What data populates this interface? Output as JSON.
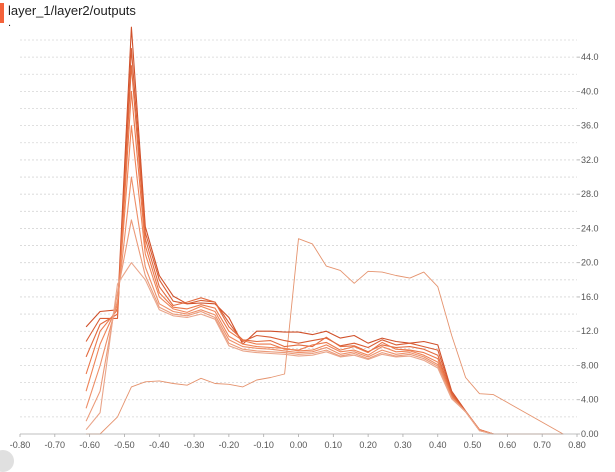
{
  "header": {
    "title": "layer_1/layer2/outputs",
    "subtitle": "."
  },
  "colors": {
    "accent": "#f4623a",
    "old": "#e9a58a",
    "mid": "#f07f50",
    "new": "#d0502a",
    "outlier": "#e5936e"
  },
  "chart_data": {
    "type": "line",
    "title": "layer_1/layer2/outputs",
    "xlabel": "",
    "ylabel": "",
    "xlim": [
      -0.8,
      0.8
    ],
    "ylim": [
      0,
      46
    ],
    "grid": true,
    "y_axis_side": "right",
    "x_ticks": [
      "-0.80",
      "-0.70",
      "-0.60",
      "-0.50",
      "-0.40",
      "-0.30",
      "-0.20",
      "-0.10",
      "0.00",
      "0.10",
      "0.20",
      "0.30",
      "0.40",
      "0.50",
      "0.60",
      "0.70",
      "0.80"
    ],
    "x_tick_values": [
      -0.8,
      -0.7,
      -0.6,
      -0.5,
      -0.4,
      -0.3,
      -0.2,
      -0.1,
      0.0,
      0.1,
      0.2,
      0.3,
      0.4,
      0.5,
      0.6,
      0.7,
      0.8
    ],
    "y_ticks": [
      "0.00",
      "4.00",
      "8.00",
      "12.0",
      "16.0",
      "20.0",
      "24.0",
      "28.0",
      "32.0",
      "36.0",
      "40.0",
      "44.0"
    ],
    "y_tick_values": [
      0,
      4,
      8,
      12,
      16,
      20,
      24,
      28,
      32,
      36,
      40,
      44
    ],
    "series": [
      {
        "x": [
          -0.61,
          -0.57,
          -0.52,
          -0.48,
          -0.44,
          -0.4,
          -0.36,
          -0.32,
          -0.28,
          -0.24,
          -0.2,
          -0.16,
          -0.12,
          -0.08,
          -0.04,
          0.0,
          0.04,
          0.08,
          0.12,
          0.16,
          0.2,
          0.24,
          0.28,
          0.32,
          0.36,
          0.4,
          0.44,
          0.48,
          0.52,
          0.56,
          0.76
        ],
        "y": [
          0,
          0,
          2,
          5.5,
          6.1,
          6.2,
          5.9,
          5.7,
          6.5,
          5.9,
          5.8,
          5.5,
          6.3,
          6.6,
          7,
          22.8,
          22.2,
          19.6,
          19.1,
          17.6,
          19,
          18.9,
          18.5,
          18.2,
          18.9,
          17.2,
          11.5,
          6.6,
          4.7,
          4.6,
          0
        ]
      },
      {
        "x": [
          -0.61,
          -0.57,
          -0.52,
          -0.48,
          -0.44,
          -0.4,
          -0.36,
          -0.32,
          -0.28,
          -0.24,
          -0.2,
          -0.16,
          -0.12,
          -0.08,
          -0.04,
          0.0,
          0.04,
          0.08,
          0.12,
          0.16,
          0.2,
          0.24,
          0.28,
          0.32,
          0.36,
          0.4,
          0.44,
          0.48,
          0.52,
          0.56,
          0.6,
          0.64,
          0.68,
          0.72,
          0.76
        ],
        "y": [
          12.5,
          14.3,
          14.5,
          47.5,
          24.2,
          18.5,
          16.1,
          15.2,
          15.3,
          15.2,
          13.6,
          10.5,
          12,
          12,
          11.9,
          11.9,
          11.6,
          12.0,
          11.2,
          11.5,
          10.6,
          11.2,
          10.8,
          10.6,
          10.8,
          10.4,
          5,
          2.7,
          0.5,
          0,
          0,
          0,
          0,
          0,
          0
        ]
      },
      {
        "x": [
          -0.61,
          -0.57,
          -0.52,
          -0.48,
          -0.44,
          -0.4,
          -0.36,
          -0.32,
          -0.28,
          -0.24,
          -0.2,
          -0.16,
          -0.12,
          -0.08,
          -0.04,
          0.0,
          0.04,
          0.08,
          0.12,
          0.16,
          0.2,
          0.24,
          0.28,
          0.32,
          0.36,
          0.4,
          0.44,
          0.48,
          0.52,
          0.56,
          0.6,
          0.64,
          0.68,
          0.72,
          0.76
        ],
        "y": [
          10.8,
          13.5,
          13.5,
          45,
          23.5,
          18,
          15.5,
          15.2,
          15.6,
          15.4,
          13,
          10.8,
          11.5,
          11.3,
          10.9,
          10.6,
          10.9,
          11.2,
          10.3,
          10.6,
          10.1,
          11.0,
          10.4,
          10.6,
          10.2,
          9.8,
          4.8,
          2.6,
          0.5,
          0,
          0,
          0,
          0,
          0,
          0
        ]
      },
      {
        "x": [
          -0.61,
          -0.57,
          -0.52,
          -0.48,
          -0.44,
          -0.4,
          -0.36,
          -0.32,
          -0.28,
          -0.24,
          -0.2,
          -0.16,
          -0.12,
          -0.08,
          -0.04,
          0.0,
          0.04,
          0.08,
          0.12,
          0.16,
          0.2,
          0.24,
          0.28,
          0.32,
          0.36,
          0.4,
          0.44,
          0.48,
          0.52,
          0.56,
          0.6,
          0.64,
          0.68,
          0.72,
          0.76
        ],
        "y": [
          9,
          12.8,
          14,
          43,
          22.8,
          17.2,
          15,
          15.4,
          15.9,
          15.4,
          12.5,
          11,
          10.8,
          10.9,
          10.2,
          10.4,
          10.2,
          11.3,
          10.2,
          10.3,
          9.6,
          10.4,
          10.1,
          10.2,
          9.9,
          9.2,
          4.6,
          2.6,
          0.5,
          0,
          0,
          0,
          0,
          0,
          0
        ]
      },
      {
        "x": [
          -0.61,
          -0.57,
          -0.52,
          -0.48,
          -0.44,
          -0.4,
          -0.36,
          -0.32,
          -0.28,
          -0.24,
          -0.2,
          -0.16,
          -0.12,
          -0.08,
          -0.04,
          0.0,
          0.04,
          0.08,
          0.12,
          0.16,
          0.2,
          0.24,
          0.28,
          0.32,
          0.36,
          0.4,
          0.44,
          0.48,
          0.52,
          0.56,
          0.6,
          0.64,
          0.68,
          0.72,
          0.76
        ],
        "y": [
          7,
          12,
          14.5,
          40,
          22,
          16.5,
          14.8,
          14.6,
          15.1,
          14.7,
          12,
          10.9,
          10.5,
          10.5,
          9.9,
          9.8,
          10.4,
          10.7,
          9.8,
          10.2,
          9.5,
          10.7,
          9.9,
          9.8,
          9.5,
          8.8,
          4.4,
          2.6,
          0.5,
          0,
          0,
          0,
          0,
          0,
          0
        ]
      },
      {
        "x": [
          -0.61,
          -0.57,
          -0.52,
          -0.48,
          -0.44,
          -0.4,
          -0.36,
          -0.32,
          -0.28,
          -0.24,
          -0.2,
          -0.16,
          -0.12,
          -0.08,
          -0.04,
          0.0,
          0.04,
          0.08,
          0.12,
          0.16,
          0.2,
          0.24,
          0.28,
          0.32,
          0.36,
          0.4,
          0.44,
          0.48,
          0.52,
          0.56,
          0.6,
          0.64,
          0.68,
          0.72,
          0.76
        ],
        "y": [
          5,
          10.5,
          15,
          36,
          21,
          16,
          14.6,
          14.2,
          14.9,
          14.3,
          11.4,
          10.5,
          10.2,
          10.1,
          10,
          9.7,
          9.8,
          10.4,
          9.6,
          9.8,
          9.2,
          10.2,
          9.6,
          9.7,
          9.2,
          8.4,
          4.3,
          2.6,
          0.4,
          0,
          0,
          0,
          0,
          0,
          0
        ]
      },
      {
        "x": [
          -0.61,
          -0.57,
          -0.52,
          -0.48,
          -0.44,
          -0.4,
          -0.36,
          -0.32,
          -0.28,
          -0.24,
          -0.2,
          -0.16,
          -0.12,
          -0.08,
          -0.04,
          0.0,
          0.04,
          0.08,
          0.12,
          0.16,
          0.2,
          0.24,
          0.28,
          0.32,
          0.36,
          0.4,
          0.44,
          0.48,
          0.52,
          0.56,
          0.6,
          0.64,
          0.68,
          0.72,
          0.76
        ],
        "y": [
          3,
          8,
          15.5,
          30,
          19.5,
          15.2,
          14.3,
          14,
          14.5,
          13.9,
          11,
          10.2,
          10,
          9.9,
          9.7,
          9.5,
          9.6,
          10.1,
          9.3,
          9.6,
          9,
          9.8,
          9.3,
          9.5,
          9.0,
          8.1,
          4.2,
          2.6,
          0.4,
          0,
          0,
          0,
          0,
          0,
          0
        ]
      },
      {
        "x": [
          -0.61,
          -0.57,
          -0.52,
          -0.48,
          -0.44,
          -0.4,
          -0.36,
          -0.32,
          -0.28,
          -0.24,
          -0.2,
          -0.16,
          -0.12,
          -0.08,
          -0.04,
          0.0,
          0.04,
          0.08,
          0.12,
          0.16,
          0.2,
          0.24,
          0.28,
          0.32,
          0.36,
          0.4,
          0.44,
          0.48,
          0.52,
          0.56,
          0.6,
          0.64,
          0.68,
          0.72,
          0.76
        ],
        "y": [
          1.5,
          5,
          16.5,
          25,
          18.5,
          14.8,
          14,
          13.8,
          14.3,
          13.6,
          10.6,
          9.9,
          9.7,
          9.6,
          9.5,
          9.3,
          9.4,
          9.8,
          9.1,
          9.4,
          8.8,
          9.5,
          9.1,
          9.3,
          8.8,
          7.9,
          4.2,
          2.6,
          0.4,
          0,
          0,
          0,
          0,
          0,
          0
        ]
      },
      {
        "x": [
          -0.61,
          -0.57,
          -0.52,
          -0.48,
          -0.44,
          -0.4,
          -0.36,
          -0.32,
          -0.28,
          -0.24,
          -0.2,
          -0.16,
          -0.12,
          -0.08,
          -0.04,
          0.0,
          0.04,
          0.08,
          0.12,
          0.16,
          0.2,
          0.24,
          0.28,
          0.32,
          0.36,
          0.4,
          0.44,
          0.48,
          0.52,
          0.56,
          0.6,
          0.64,
          0.68,
          0.72,
          0.76
        ],
        "y": [
          0.5,
          2.5,
          17.5,
          20,
          18,
          14.5,
          13.8,
          13.6,
          14,
          13.4,
          10.3,
          9.7,
          9.5,
          9.4,
          9.3,
          9.1,
          9.2,
          9.6,
          9.0,
          9.2,
          8.7,
          9.3,
          9,
          9.1,
          8.6,
          7.7,
          4.1,
          2.6,
          0.4,
          0,
          0,
          0,
          0,
          0,
          0
        ]
      }
    ]
  }
}
